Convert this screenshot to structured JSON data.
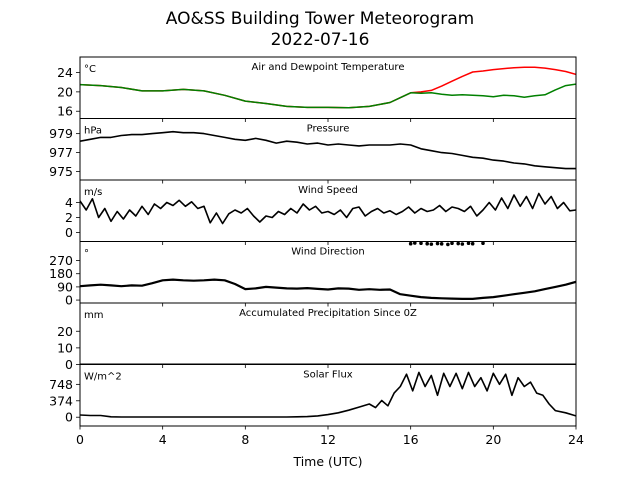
{
  "chart_data": {
    "type": "line",
    "title": "AO&SS Building Tower Meteorogram",
    "subtitle": "2022-07-16",
    "xlabel": "Time (UTC)",
    "x_ticks": [
      "0",
      "4",
      "8",
      "12",
      "16",
      "20",
      "24"
    ],
    "xlim": [
      0,
      24
    ],
    "panels": [
      {
        "title": "Air and Dewpoint Temperature",
        "unit": "°C",
        "ylim": [
          14.5,
          27.2
        ],
        "y_ticks": [
          "16",
          "20",
          "24"
        ],
        "series": [
          {
            "color": "#ff0000",
            "width": 1.5,
            "x": [
              0,
              1,
              2,
              3,
              4,
              5,
              6,
              7,
              8,
              9,
              10,
              11,
              12,
              13,
              14,
              15,
              15.6,
              16,
              16.5,
              17,
              17.5,
              18,
              18.5,
              19,
              19.5,
              20,
              20.5,
              21,
              21.5,
              22,
              22.5,
              23,
              23.5,
              24
            ],
            "y": [
              21.5,
              21.3,
              20.9,
              20.2,
              20.2,
              20.5,
              20.2,
              19.3,
              18.1,
              17.6,
              17.0,
              16.8,
              16.8,
              16.7,
              17.0,
              17.8,
              19.0,
              19.8,
              20.0,
              20.3,
              21.2,
              22.2,
              23.2,
              24.1,
              24.3,
              24.6,
              24.8,
              25.0,
              25.1,
              25.1,
              24.9,
              24.6,
              24.2,
              23.6
            ]
          },
          {
            "color": "#008000",
            "width": 1.5,
            "x": [
              0,
              1,
              2,
              3,
              4,
              5,
              6,
              7,
              8,
              9,
              10,
              11,
              12,
              13,
              14,
              15,
              15.6,
              16,
              16.5,
              17,
              17.5,
              18,
              18.5,
              19,
              19.5,
              20,
              20.5,
              21,
              21.5,
              22,
              22.5,
              23,
              23.5,
              24
            ],
            "y": [
              21.5,
              21.3,
              20.9,
              20.2,
              20.2,
              20.5,
              20.2,
              19.3,
              18.1,
              17.6,
              17.0,
              16.8,
              16.8,
              16.7,
              17.0,
              17.8,
              19.0,
              19.8,
              19.7,
              19.8,
              19.5,
              19.3,
              19.4,
              19.3,
              19.2,
              19.0,
              19.3,
              19.2,
              18.9,
              19.2,
              19.4,
              20.4,
              21.3,
              21.6
            ]
          }
        ]
      },
      {
        "title": "Pressure",
        "unit": "hPa",
        "ylim": [
          974.1,
          980.6
        ],
        "y_ticks": [
          "975",
          "977",
          "979"
        ],
        "series": [
          {
            "color": "#000000",
            "width": 1.6,
            "x": [
              0,
              0.5,
              1,
              1.5,
              2,
              2.5,
              3,
              3.5,
              4,
              4.5,
              5,
              5.5,
              6,
              6.5,
              7,
              7.5,
              8,
              8.5,
              9,
              9.5,
              10,
              10.5,
              11,
              11.5,
              12,
              12.5,
              13,
              13.5,
              14,
              14.5,
              15,
              15.5,
              16,
              16.5,
              17,
              17.5,
              18,
              18.5,
              19,
              19.5,
              20,
              20.5,
              21,
              21.5,
              22,
              22.5,
              23,
              23.5,
              24
            ],
            "y": [
              978.2,
              978.4,
              978.6,
              978.6,
              978.8,
              978.9,
              978.9,
              979.0,
              979.1,
              979.2,
              979.1,
              979.1,
              979.0,
              978.8,
              978.6,
              978.4,
              978.3,
              978.5,
              978.3,
              978.0,
              978.2,
              978.1,
              977.9,
              978.0,
              977.8,
              977.9,
              977.8,
              977.7,
              977.8,
              977.8,
              977.8,
              977.9,
              977.8,
              977.4,
              977.2,
              977.0,
              976.9,
              976.7,
              976.5,
              976.4,
              976.2,
              976.1,
              975.9,
              975.8,
              975.6,
              975.5,
              975.4,
              975.3,
              975.3
            ]
          }
        ]
      },
      {
        "title": "Wind Speed",
        "unit": "m/s",
        "ylim": [
          -1.2,
          7.0
        ],
        "y_ticks": [
          "0",
          "2",
          "4"
        ],
        "series": [
          {
            "color": "#000000",
            "width": 1.6,
            "x": [
              0,
              0.3,
              0.6,
              0.9,
              1.2,
              1.5,
              1.8,
              2.1,
              2.4,
              2.7,
              3.0,
              3.3,
              3.6,
              3.9,
              4.2,
              4.5,
              4.8,
              5.1,
              5.4,
              5.7,
              6.0,
              6.3,
              6.6,
              6.9,
              7.2,
              7.5,
              7.8,
              8.1,
              8.4,
              8.7,
              9.0,
              9.3,
              9.6,
              9.9,
              10.2,
              10.5,
              10.8,
              11.1,
              11.4,
              11.7,
              12.0,
              12.3,
              12.6,
              12.9,
              13.2,
              13.5,
              13.8,
              14.1,
              14.4,
              14.7,
              15.0,
              15.3,
              15.6,
              15.9,
              16.2,
              16.5,
              16.8,
              17.1,
              17.4,
              17.7,
              18.0,
              18.3,
              18.6,
              18.9,
              19.2,
              19.5,
              19.8,
              20.1,
              20.4,
              20.7,
              21.0,
              21.3,
              21.6,
              21.9,
              22.2,
              22.5,
              22.8,
              23.1,
              23.4,
              23.7,
              24.0
            ],
            "y": [
              4.2,
              3.0,
              4.5,
              2.0,
              3.2,
              1.5,
              2.8,
              1.8,
              3.0,
              2.2,
              3.5,
              2.4,
              3.8,
              3.2,
              4.0,
              3.6,
              4.3,
              3.5,
              4.1,
              3.2,
              3.5,
              1.3,
              2.6,
              1.2,
              2.5,
              3.0,
              2.6,
              3.2,
              2.2,
              1.4,
              2.2,
              2.0,
              2.8,
              2.4,
              3.2,
              2.6,
              3.8,
              3.0,
              3.5,
              2.6,
              2.8,
              2.4,
              3.0,
              2.0,
              3.2,
              3.4,
              2.2,
              2.8,
              3.2,
              2.6,
              2.9,
              2.4,
              2.8,
              3.4,
              2.6,
              3.2,
              2.8,
              3.0,
              3.6,
              2.8,
              3.4,
              3.2,
              2.8,
              3.5,
              2.2,
              3.0,
              4.0,
              3.0,
              4.6,
              3.2,
              5.0,
              3.5,
              4.8,
              3.2,
              5.2,
              3.8,
              4.8,
              3.2,
              4.0,
              2.9,
              3.0
            ]
          }
        ]
      },
      {
        "title": "Wind Direction",
        "unit": "°",
        "ylim": [
          -20,
          400
        ],
        "y_ticks": [
          "0",
          "90",
          "180",
          "270"
        ],
        "series": [
          {
            "color": "#000000",
            "width": 2.2,
            "x": [
              0,
              0.5,
              1,
              1.5,
              2,
              2.5,
              3,
              3.5,
              4,
              4.5,
              5,
              5.5,
              6,
              6.5,
              7,
              7.5,
              8,
              8.5,
              9,
              9.5,
              10,
              10.5,
              11,
              11.5,
              12,
              12.5,
              13,
              13.5,
              14,
              14.5,
              15,
              15.5,
              16,
              16.5,
              17,
              17.5,
              18,
              18.5,
              19,
              19.5,
              20,
              20.5,
              21,
              21.5,
              22,
              22.5,
              23,
              23.5,
              24
            ],
            "y": [
              95,
              100,
              105,
              100,
              95,
              100,
              98,
              115,
              135,
              140,
              135,
              132,
              135,
              140,
              135,
              110,
              75,
              80,
              90,
              85,
              80,
              78,
              82,
              76,
              72,
              80,
              78,
              70,
              74,
              70,
              72,
              40,
              30,
              20,
              15,
              12,
              10,
              8,
              8,
              15,
              20,
              30,
              40,
              50,
              60,
              75,
              90,
              105,
              125
            ]
          }
        ],
        "points": {
          "color": "#000000",
          "x": [
            16.0,
            16.2,
            16.5,
            16.8,
            17.0,
            17.3,
            17.5,
            17.8,
            18.0,
            18.3,
            18.5,
            18.8,
            19.0,
            19.5
          ],
          "y": [
            385,
            390,
            388,
            385,
            382,
            386,
            384,
            380,
            388,
            386,
            383,
            388,
            385,
            388
          ]
        }
      },
      {
        "title": "Accumulated Precipitation Since 0Z",
        "unit": "mm",
        "ylim": [
          0,
          37
        ],
        "y_ticks": [
          "0",
          "10",
          "20"
        ],
        "series": [
          {
            "color": "#000000",
            "width": 2.0,
            "x": [
              0,
              24
            ],
            "y": [
              0,
              0
            ]
          }
        ]
      },
      {
        "title": "Solar Flux",
        "unit": "W/m^2",
        "ylim": [
          -200,
          1200
        ],
        "y_ticks": [
          "0",
          "374",
          "748"
        ],
        "series": [
          {
            "color": "#000000",
            "width": 1.6,
            "x": [
              0,
              0.5,
              1,
              1.5,
              2,
              3,
              4,
              5,
              6,
              7,
              8,
              9,
              10,
              10.5,
              11,
              11.5,
              12,
              12.5,
              13,
              13.5,
              14,
              14.3,
              14.6,
              14.9,
              15.2,
              15.5,
              15.8,
              16.1,
              16.4,
              16.7,
              17.0,
              17.3,
              17.6,
              17.9,
              18.2,
              18.5,
              18.8,
              19.1,
              19.4,
              19.7,
              20.0,
              20.3,
              20.6,
              20.9,
              21.2,
              21.5,
              21.8,
              22.1,
              22.4,
              22.7,
              23.0,
              23.5,
              24
            ],
            "y": [
              50,
              40,
              40,
              10,
              5,
              5,
              5,
              5,
              5,
              5,
              5,
              5,
              5,
              10,
              15,
              30,
              60,
              100,
              160,
              230,
              300,
              220,
              380,
              260,
              550,
              700,
              980,
              600,
              1020,
              700,
              950,
              500,
              1000,
              700,
              1000,
              650,
              1020,
              700,
              900,
              600,
              1000,
              750,
              980,
              500,
              900,
              700,
              800,
              550,
              500,
              300,
              150,
              100,
              30
            ]
          }
        ]
      }
    ]
  }
}
